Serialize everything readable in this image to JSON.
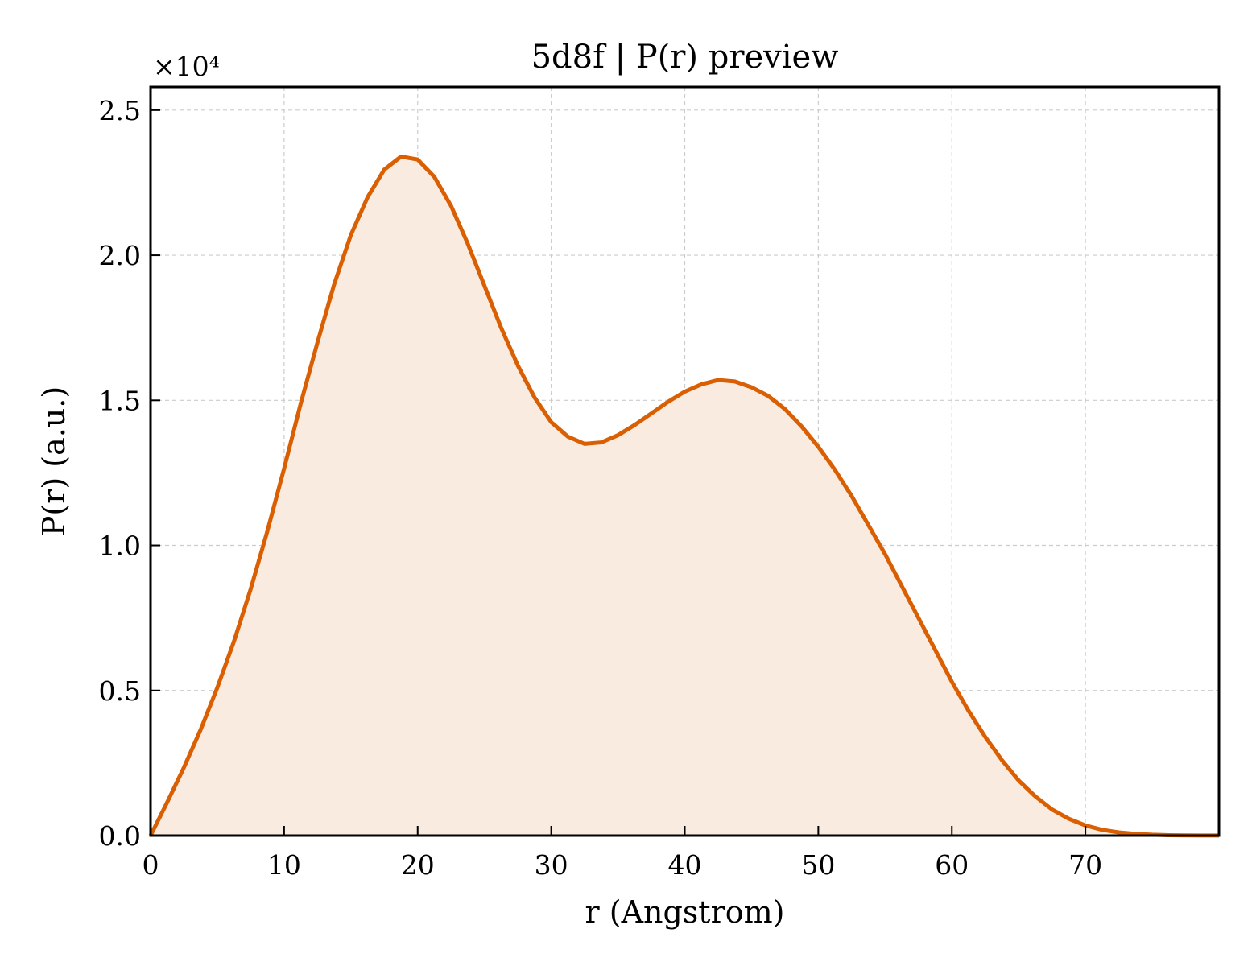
{
  "chart_data": {
    "type": "area",
    "title": "5d8f | P(r) preview",
    "xlabel": "r (Angstrom)",
    "ylabel": "P(r) (a.u.)",
    "y_offset_label": "×10⁴",
    "y_scale_factor": 10000,
    "xlim": [
      0,
      80
    ],
    "ylim": [
      0,
      25800
    ],
    "x_ticks": [
      0,
      10,
      20,
      30,
      40,
      50,
      60,
      70
    ],
    "x_tick_labels": [
      "0",
      "10",
      "20",
      "30",
      "40",
      "50",
      "60",
      "70"
    ],
    "y_ticks": [
      0,
      5000,
      10000,
      15000,
      20000,
      25000
    ],
    "y_tick_labels": [
      "0.0",
      "0.5",
      "1.0",
      "1.5",
      "2.0",
      "2.5"
    ],
    "grid": true,
    "colors": {
      "line": "#d95f02",
      "fill": "#f9ebe0",
      "grid": "#cccccc",
      "axes": "#000000"
    },
    "series": [
      {
        "x": [
          0,
          1.25,
          2.5,
          3.75,
          5,
          6.25,
          7.5,
          8.75,
          10,
          11.25,
          12.5,
          13.75,
          15,
          16.25,
          17.5,
          18.75,
          20,
          21.25,
          22.5,
          23.75,
          25,
          26.25,
          27.5,
          28.75,
          30,
          31.25,
          32.5,
          33.75,
          35,
          36.25,
          37.5,
          38.75,
          40,
          41.25,
          42.5,
          43.75,
          45,
          46.25,
          47.5,
          48.75,
          50,
          51.25,
          52.5,
          53.75,
          55,
          56.25,
          57.5,
          58.75,
          60,
          61.25,
          62.5,
          63.75,
          65,
          66.25,
          67.5,
          68.75,
          70,
          71.25,
          72.5,
          73.75,
          75,
          76.25,
          77.5,
          78.75,
          80
        ],
        "y": [
          0,
          1150,
          2350,
          3650,
          5100,
          6700,
          8500,
          10500,
          12650,
          14900,
          17000,
          19000,
          20700,
          22000,
          22950,
          23400,
          23300,
          22700,
          21700,
          20400,
          18950,
          17500,
          16200,
          15100,
          14250,
          13750,
          13500,
          13550,
          13800,
          14150,
          14550,
          14950,
          15300,
          15550,
          15700,
          15650,
          15450,
          15150,
          14700,
          14100,
          13400,
          12600,
          11700,
          10700,
          9700,
          8600,
          7500,
          6400,
          5300,
          4300,
          3400,
          2600,
          1900,
          1350,
          900,
          580,
          350,
          200,
          110,
          60,
          30,
          15,
          8,
          4,
          2
        ]
      }
    ]
  }
}
